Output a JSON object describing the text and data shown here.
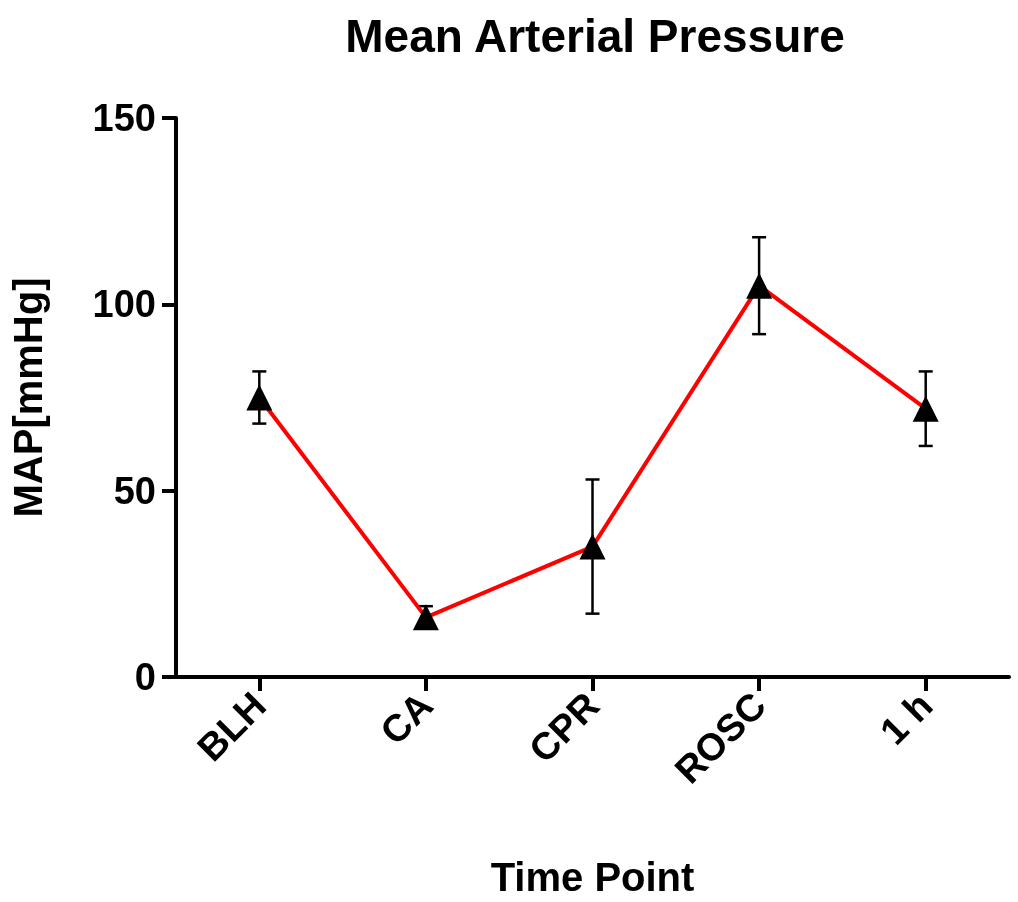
{
  "chart_data": {
    "type": "line",
    "title": "Mean Arterial Pressure",
    "xlabel": "Time Point",
    "ylabel": "MAP[mmHg]",
    "categories": [
      "BLH",
      "CA",
      "CPR",
      "ROSC",
      "1 h"
    ],
    "series": [
      {
        "color": "#ff0000",
        "values": [
          75,
          16,
          35,
          105,
          72
        ],
        "errors": [
          7,
          3,
          18,
          13,
          10
        ]
      }
    ],
    "ylim": [
      0,
      150
    ],
    "yticks": [
      0,
      50,
      100,
      150
    ],
    "grid": false,
    "marker": "triangle",
    "line_style": "solid"
  }
}
